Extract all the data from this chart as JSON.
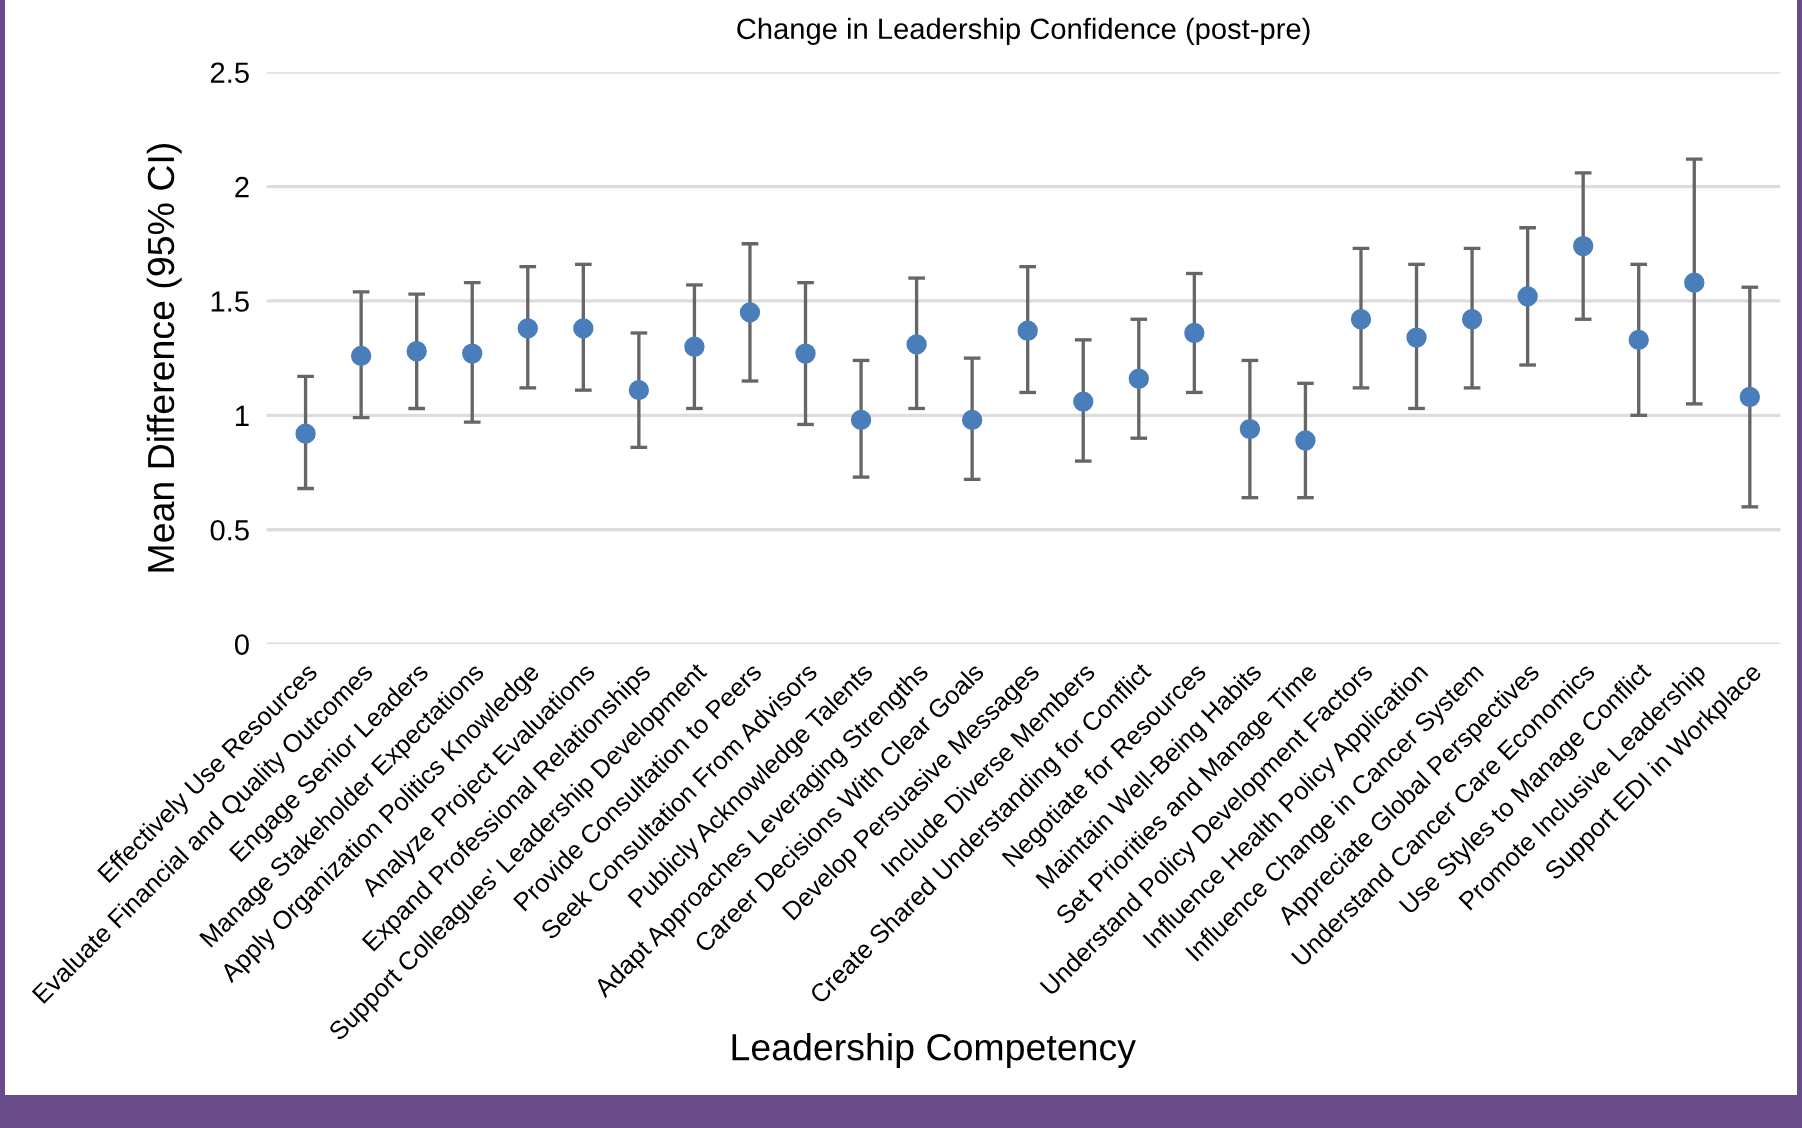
{
  "chart_data": {
    "type": "scatter",
    "title": "Change in Leadership Confidence (post-pre)",
    "xlabel": "Leadership Competency",
    "ylabel": "Mean Difference (95% CI)",
    "categories": [
      "Effectively Use Resources",
      "Evaluate Financial and Quality Outcomes",
      "Engage Senior Leaders",
      "Manage Stakeholder Expectations",
      "Apply Organization Politics Knowledge",
      "Analyze Project Evaluations",
      "Expand Professional Relationships",
      "Support Colleagues' Leadership Development",
      "Provide Consultation to Peers",
      "Seek Consultation From Advisors",
      "Publicly Acknowledge Talents",
      "Adapt Approaches Leveraging Strengths",
      "Career Decisions With Clear Goals",
      "Develop Persuasive Messages",
      "Include Diverse Members",
      "Create Shared Understanding for Conflict",
      "Negotiate for Resources",
      "Maintain Well-Being Habits",
      "Set Priorities and Manage Time",
      "Understand Policy Development Factors",
      "Influence Health Policy Application",
      "Influence Change in Cancer System",
      "Appreciate Global Perspectives",
      "Understand Cancer Care Economics",
      "Use Styles to Manage Conflict",
      "Promote Inclusive Leadership",
      "Support EDI in Workplace"
    ],
    "series": [
      {
        "color": "#4a7ebb",
        "values": [
          0.92,
          1.26,
          1.28,
          1.27,
          1.38,
          1.38,
          1.11,
          1.3,
          1.45,
          1.27,
          0.98,
          1.31,
          0.98,
          1.37,
          1.06,
          1.16,
          1.36,
          0.94,
          0.89,
          1.42,
          1.34,
          1.42,
          1.52,
          1.74,
          1.33,
          1.58,
          1.08
        ],
        "errors": [
          [
            0.68,
            1.17
          ],
          [
            0.99,
            1.54
          ],
          [
            1.03,
            1.53
          ],
          [
            0.97,
            1.58
          ],
          [
            1.12,
            1.65
          ],
          [
            1.11,
            1.66
          ],
          [
            0.86,
            1.36
          ],
          [
            1.03,
            1.57
          ],
          [
            1.15,
            1.75
          ],
          [
            0.96,
            1.58
          ],
          [
            0.73,
            1.24
          ],
          [
            1.03,
            1.6
          ],
          [
            0.72,
            1.25
          ],
          [
            1.1,
            1.65
          ],
          [
            0.8,
            1.33
          ],
          [
            0.9,
            1.42
          ],
          [
            1.1,
            1.62
          ],
          [
            0.64,
            1.24
          ],
          [
            0.64,
            1.14
          ],
          [
            1.12,
            1.73
          ],
          [
            1.03,
            1.66
          ],
          [
            1.12,
            1.73
          ],
          [
            1.22,
            1.82
          ],
          [
            1.42,
            2.06
          ],
          [
            1.0,
            1.66
          ],
          [
            1.05,
            2.12
          ],
          [
            0.6,
            1.56
          ]
        ]
      }
    ],
    "ylim": [
      0,
      2.5
    ],
    "yticks": [
      0,
      0.5,
      1,
      1.5,
      2,
      2.5
    ],
    "grid": "y",
    "marker": "circle",
    "legend": false
  }
}
